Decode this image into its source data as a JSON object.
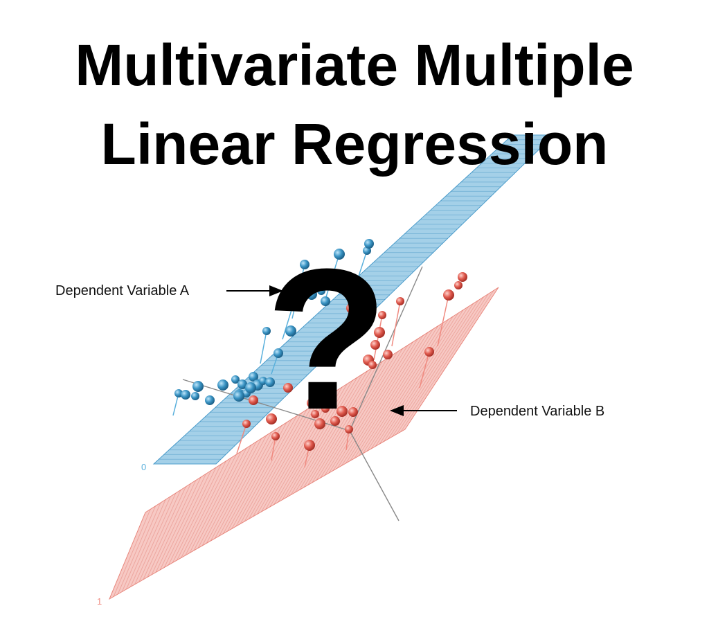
{
  "title": {
    "line1": "Multivariate Multiple",
    "line2": "Linear Regression"
  },
  "annotations": {
    "label_a": "Dependent Variable A",
    "label_b": "Dependent Variable B",
    "question_mark": "?"
  },
  "plane_labels": {
    "blue": "0",
    "red": "1"
  },
  "colors": {
    "blue_plane": "#5aa9d6",
    "blue_point": "#3a94c4",
    "red_plane": "#f0948a",
    "red_point": "#e05a4e",
    "axis": "#888888",
    "blue_label": "#5ab0dc",
    "red_label": "#f08a80"
  }
}
